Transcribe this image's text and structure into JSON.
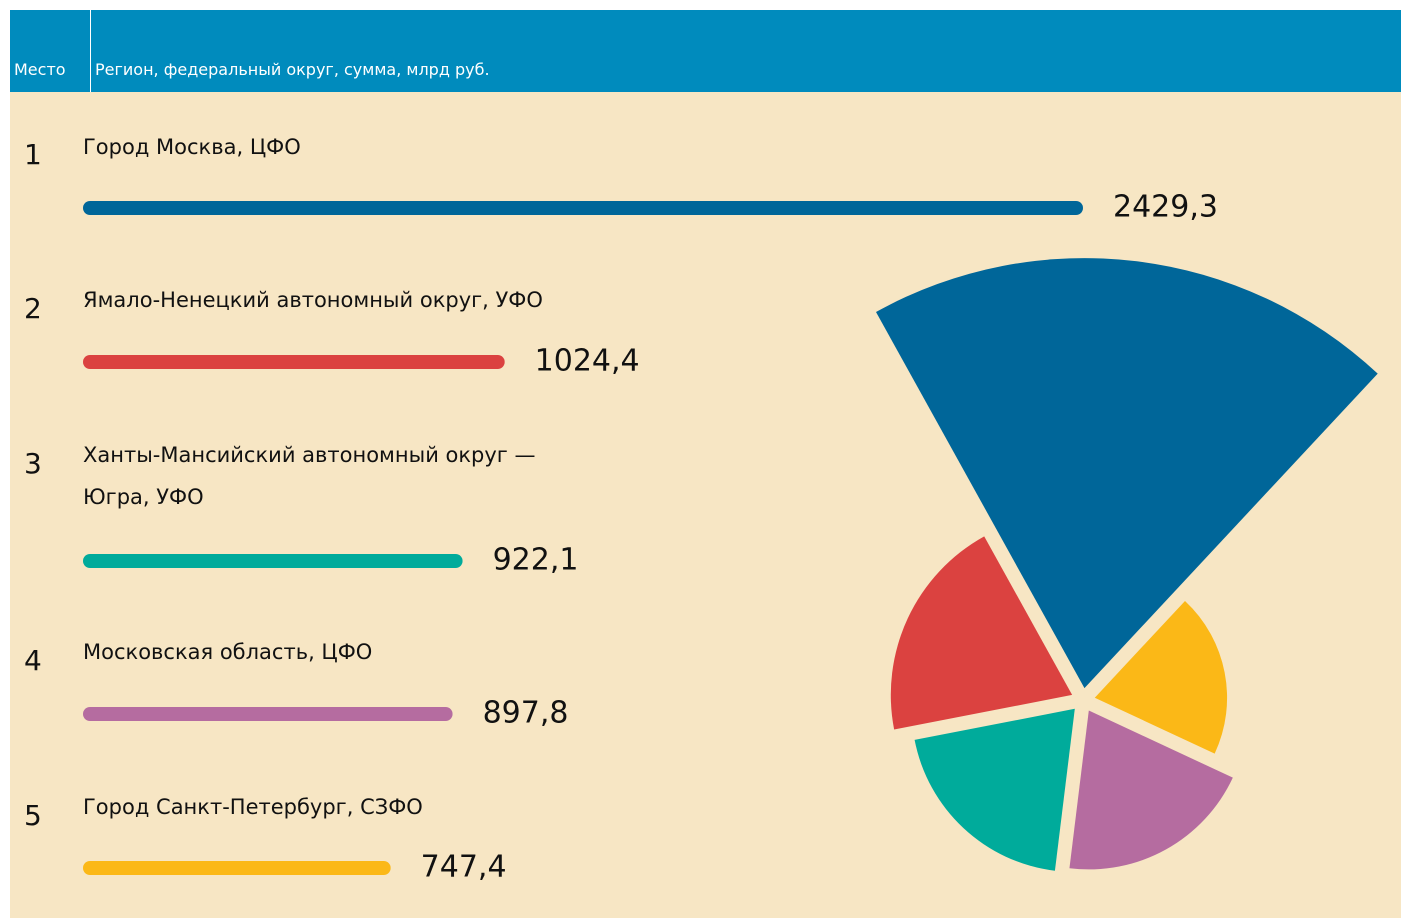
{
  "chart_data": {
    "type": "bar",
    "columns": [
      "Место",
      "Регион, федеральный округ, сумма, млрд руб."
    ],
    "ranks": [
      1,
      2,
      3,
      4,
      5
    ],
    "categories": [
      "Город Москва, ЦФО",
      "Ямало-Ненецкий автономный округ, УФО",
      "Ханты-Мансийский автономный округ — Югра, УФО",
      "Московская область, ЦФО",
      "Город Санкт-Петербург, СЗФО"
    ],
    "values": [
      2429.3,
      1024.4,
      922.1,
      897.8,
      747.4
    ],
    "value_labels": [
      "2429,3",
      "1024,4",
      "922,1",
      "897,8",
      "747,4"
    ],
    "colors": [
      "#006699",
      "#db4240",
      "#00ab9b",
      "#b56ca0",
      "#fbb817"
    ],
    "xlim": [
      0,
      2429.3
    ]
  }
}
